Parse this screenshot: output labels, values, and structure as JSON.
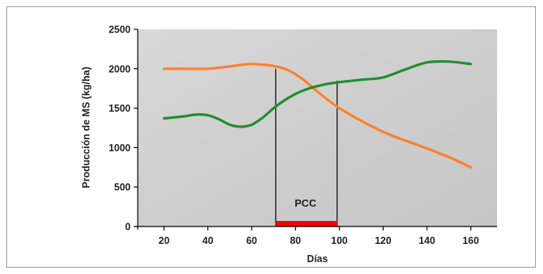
{
  "chart_data": {
    "type": "line",
    "title": "",
    "xlabel": "Días",
    "ylabel": "Producción de MS (kg/ha)",
    "xlim": [
      8,
      172
    ],
    "ylim": [
      0,
      2500
    ],
    "xticks": [
      20,
      40,
      60,
      80,
      100,
      120,
      140,
      160
    ],
    "yticks": [
      0,
      500,
      1000,
      1500,
      2000,
      2500
    ],
    "grid": false,
    "legend": "none",
    "series": [
      {
        "color": "#ff7f2a",
        "x": [
          20,
          30,
          40,
          50,
          60,
          70,
          75,
          80,
          85,
          90,
          95,
          100,
          110,
          120,
          130,
          140,
          150,
          160
        ],
        "y": [
          2000,
          2000,
          2000,
          2030,
          2060,
          2035,
          2000,
          1930,
          1830,
          1710,
          1600,
          1500,
          1340,
          1200,
          1090,
          990,
          880,
          750
        ]
      },
      {
        "color": "#1f8f2a",
        "x": [
          20,
          30,
          35,
          40,
          45,
          50,
          55,
          60,
          65,
          70,
          75,
          80,
          85,
          90,
          95,
          100,
          110,
          120,
          130,
          140,
          150,
          160
        ],
        "y": [
          1370,
          1400,
          1420,
          1410,
          1360,
          1290,
          1265,
          1290,
          1380,
          1500,
          1600,
          1680,
          1740,
          1780,
          1810,
          1830,
          1860,
          1890,
          1990,
          2080,
          2090,
          2060
        ]
      }
    ],
    "annotations": {
      "vlines": [
        71,
        99
      ],
      "vline_top_values": [
        2000,
        1850
      ],
      "band": {
        "label": "PCC",
        "x_start": 71,
        "x_end": 99,
        "color": "#ff0000"
      }
    },
    "plot_background": "#cfcfcf"
  }
}
